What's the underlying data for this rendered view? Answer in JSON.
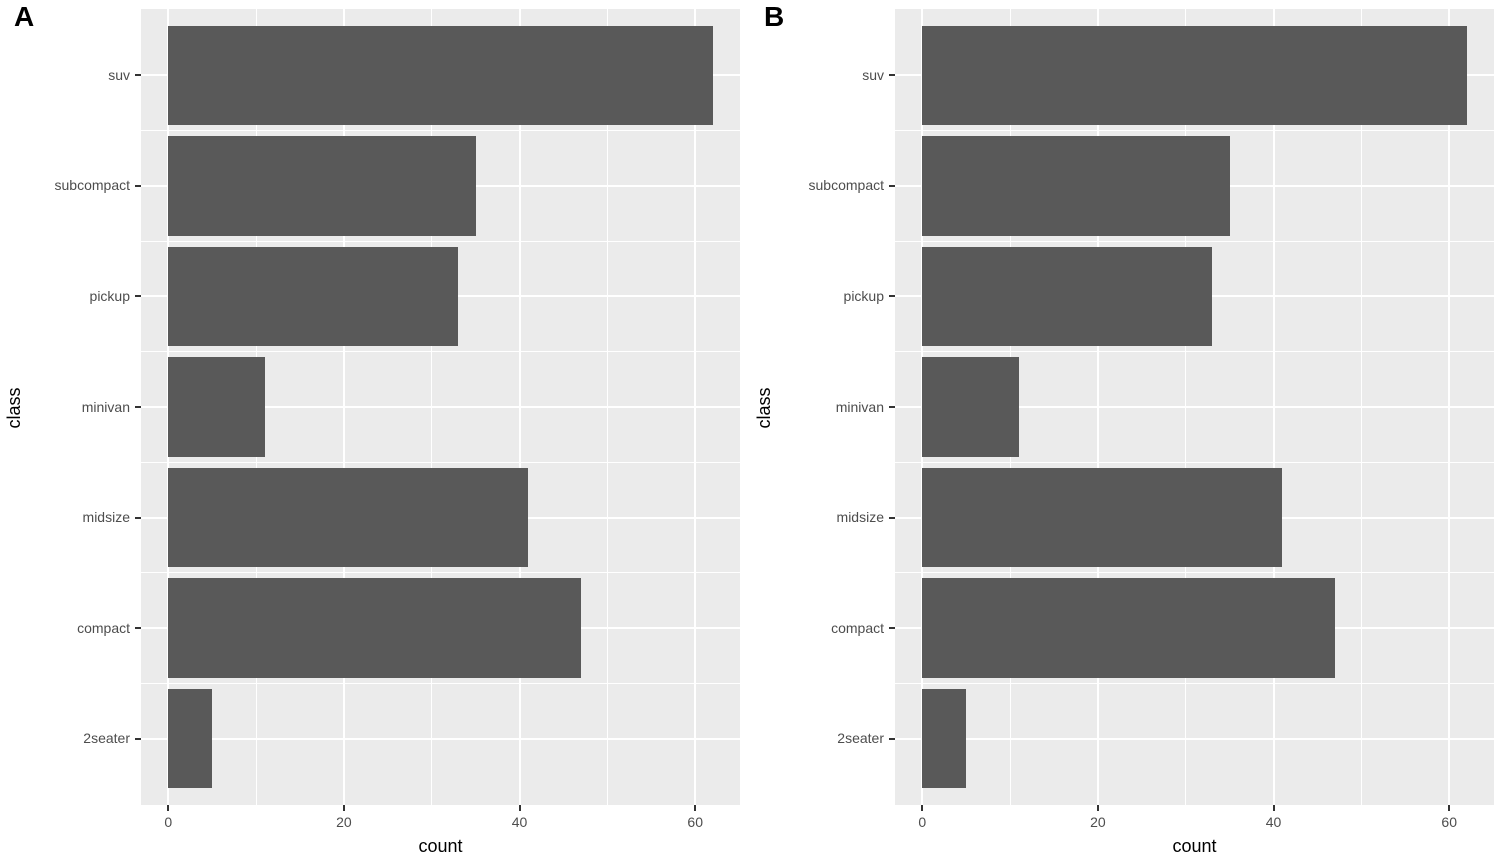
{
  "page": {
    "background": "#ffffff"
  },
  "colors": {
    "bar": "#595959",
    "panel_bg": "#ebebeb",
    "grid": "#ffffff",
    "tick_mark": "#333333",
    "tick_text": "#4d4d4d",
    "axis_title_text": "#000000",
    "panel_label_text": "#000000"
  },
  "chart_data": [
    {
      "type": "bar",
      "panel_label": "A",
      "orientation": "horizontal",
      "xlabel": "count",
      "ylabel": "class",
      "categories": [
        "suv",
        "subcompact",
        "pickup",
        "minivan",
        "midsize",
        "compact",
        "2seater"
      ],
      "values": [
        62,
        35,
        33,
        11,
        41,
        47,
        5
      ],
      "x_ticks": [
        0,
        20,
        40,
        60
      ],
      "x_tick_labels": [
        "0",
        "20",
        "40",
        "60"
      ],
      "x_minor_ticks": [
        10,
        30,
        50
      ],
      "xlim": [
        -3.1,
        65.1
      ],
      "bar_width_fraction": 0.9,
      "grid": "on",
      "legend_position": "none"
    },
    {
      "type": "bar",
      "panel_label": "B",
      "orientation": "horizontal",
      "xlabel": "count",
      "ylabel": "class",
      "categories": [
        "suv",
        "subcompact",
        "pickup",
        "minivan",
        "midsize",
        "compact",
        "2seater"
      ],
      "values": [
        62,
        35,
        33,
        11,
        41,
        47,
        5
      ],
      "x_ticks": [
        0,
        20,
        40,
        60
      ],
      "x_tick_labels": [
        "0",
        "20",
        "40",
        "60"
      ],
      "x_minor_ticks": [
        10,
        30,
        50
      ],
      "xlim": [
        -3.1,
        65.1
      ],
      "bar_width_fraction": 0.9,
      "grid": "on",
      "legend_position": "none"
    }
  ]
}
